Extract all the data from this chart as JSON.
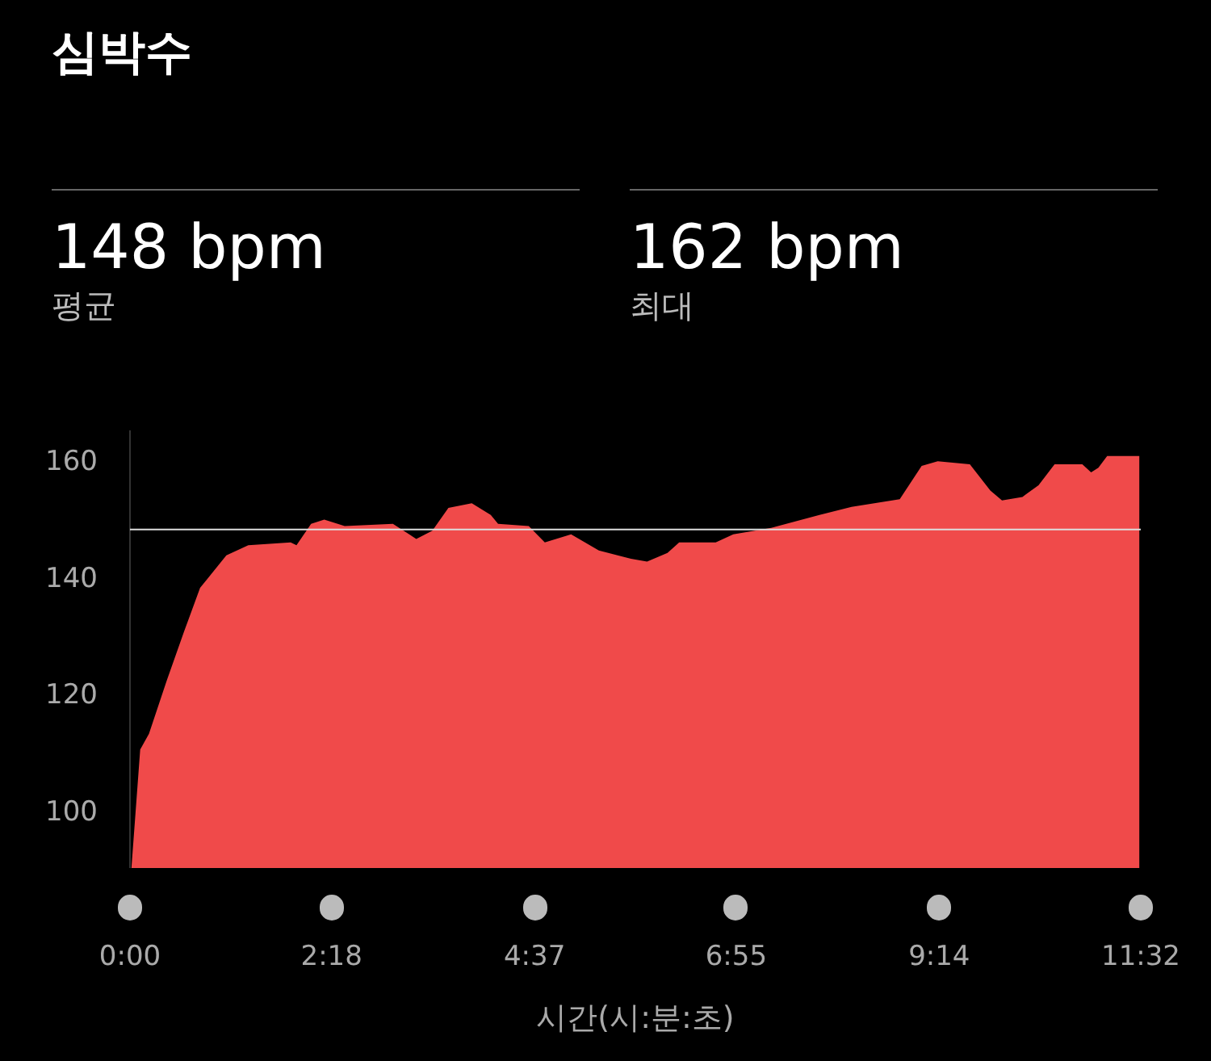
{
  "chart_data": {
    "type": "area",
    "title": "심박수",
    "annotations": [
      "148 bpm",
      "평균",
      "162 bpm",
      "최대"
    ],
    "xlabel": "시간(시:분:초)",
    "x": [
      1,
      7,
      13,
      25,
      37,
      48,
      66,
      81,
      110,
      114,
      124,
      133,
      147,
      180,
      196,
      207,
      218,
      234,
      247,
      252,
      273,
      284,
      302,
      321,
      343,
      354,
      368,
      376,
      401,
      413,
      439,
      472,
      494,
      527,
      542,
      553,
      575,
      589,
      597,
      611,
      622,
      633,
      652,
      658,
      663,
      669,
      691
    ],
    "values": [
      90,
      110.3,
      113,
      122,
      130.5,
      138,
      143.6,
      145.3,
      145.8,
      145.3,
      149,
      149.7,
      148.6,
      149,
      146.4,
      147.8,
      151.7,
      152.5,
      150.5,
      149,
      148.6,
      145.8,
      147.2,
      144.4,
      143,
      142.5,
      144,
      145.8,
      145.8,
      147.2,
      148.3,
      150.5,
      151.9,
      153.2,
      158.9,
      159.7,
      159.2,
      154.7,
      153,
      153.6,
      155.6,
      159.2,
      159.2,
      157.8,
      158.6,
      160.6,
      160.6
    ],
    "color": "#f04a4a",
    "xlim": [
      0,
      692
    ],
    "ylim": [
      90,
      165
    ],
    "xticks": [
      {
        "value": 0,
        "label": "0:00"
      },
      {
        "value": 138,
        "label": "2:18"
      },
      {
        "value": 277,
        "label": "4:37"
      },
      {
        "value": 415,
        "label": "6:55"
      },
      {
        "value": 554,
        "label": "9:14"
      },
      {
        "value": 692,
        "label": "11:32"
      }
    ],
    "yticks": [
      100,
      120,
      140,
      160
    ],
    "ref_lines": [
      {
        "axis": "y",
        "value": 148,
        "color": "#dddddd"
      }
    ]
  }
}
